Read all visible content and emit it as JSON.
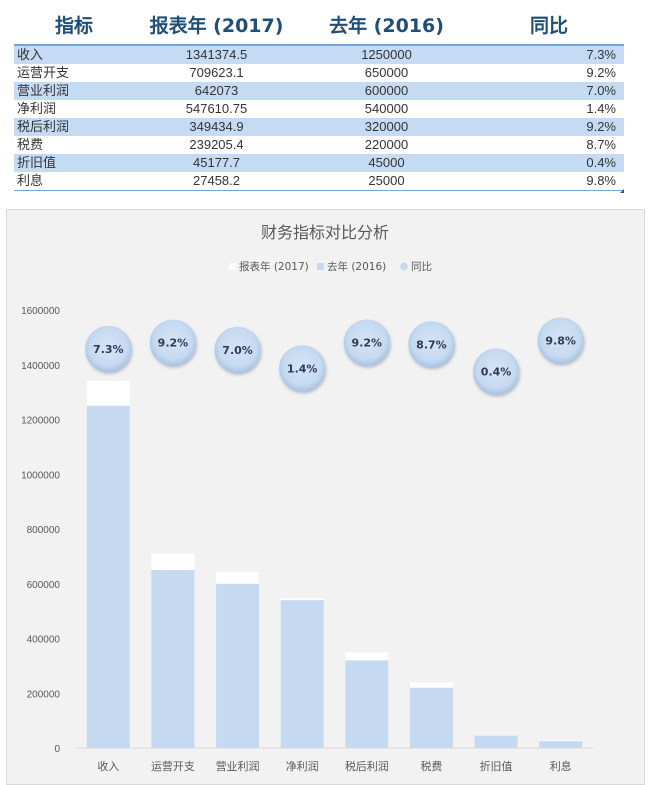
{
  "table": {
    "headers": [
      "指标",
      "报表年 (2017)",
      "去年 (2016)",
      "同比"
    ],
    "rows": [
      {
        "name": "收入",
        "cur": "1341374.5",
        "prev": "1250000",
        "yoy": "7.3%"
      },
      {
        "name": "运营开支",
        "cur": "709623.1",
        "prev": "650000",
        "yoy": "9.2%"
      },
      {
        "name": "营业利润",
        "cur": "642073",
        "prev": "600000",
        "yoy": "7.0%"
      },
      {
        "name": "净利润",
        "cur": "547610.75",
        "prev": "540000",
        "yoy": "1.4%"
      },
      {
        "name": "税后利润",
        "cur": "349434.9",
        "prev": "320000",
        "yoy": "9.2%"
      },
      {
        "name": "税费",
        "cur": "239205.4",
        "prev": "220000",
        "yoy": "8.7%"
      },
      {
        "name": "折旧值",
        "cur": "45177.7",
        "prev": "45000",
        "yoy": "0.4%"
      },
      {
        "name": "利息",
        "cur": "27458.2",
        "prev": "25000",
        "yoy": "9.8%"
      }
    ]
  },
  "chart_data": {
    "type": "bar",
    "title": "财务指标对比分析",
    "categories": [
      "收入",
      "运营开支",
      "营业利润",
      "净利润",
      "税后利润",
      "税费",
      "折旧值",
      "利息"
    ],
    "series": [
      {
        "name": "报表年 (2017)",
        "values": [
          1341374.5,
          709623.1,
          642073,
          547610.75,
          349434.9,
          239205.4,
          45177.7,
          27458.2
        ],
        "color": "#ffffff"
      },
      {
        "name": "去年 (2016)",
        "values": [
          1250000,
          650000,
          600000,
          540000,
          320000,
          220000,
          45000,
          25000
        ],
        "color": "#c5d9f1"
      },
      {
        "name": "同比",
        "values": [
          0.073,
          0.092,
          0.07,
          0.014,
          0.092,
          0.087,
          0.004,
          0.098
        ],
        "labels": [
          "7.3%",
          "9.2%",
          "7.0%",
          "1.4%",
          "9.2%",
          "8.7%",
          "0.4%",
          "9.8%"
        ],
        "color": "#c5d9f1"
      }
    ],
    "y_ticks": [
      "0",
      "200000",
      "400000",
      "600000",
      "800000",
      "1000000",
      "1200000",
      "1400000",
      "1600000"
    ],
    "ylim": [
      0,
      1600000
    ],
    "legend_position": "top",
    "grid": false
  }
}
